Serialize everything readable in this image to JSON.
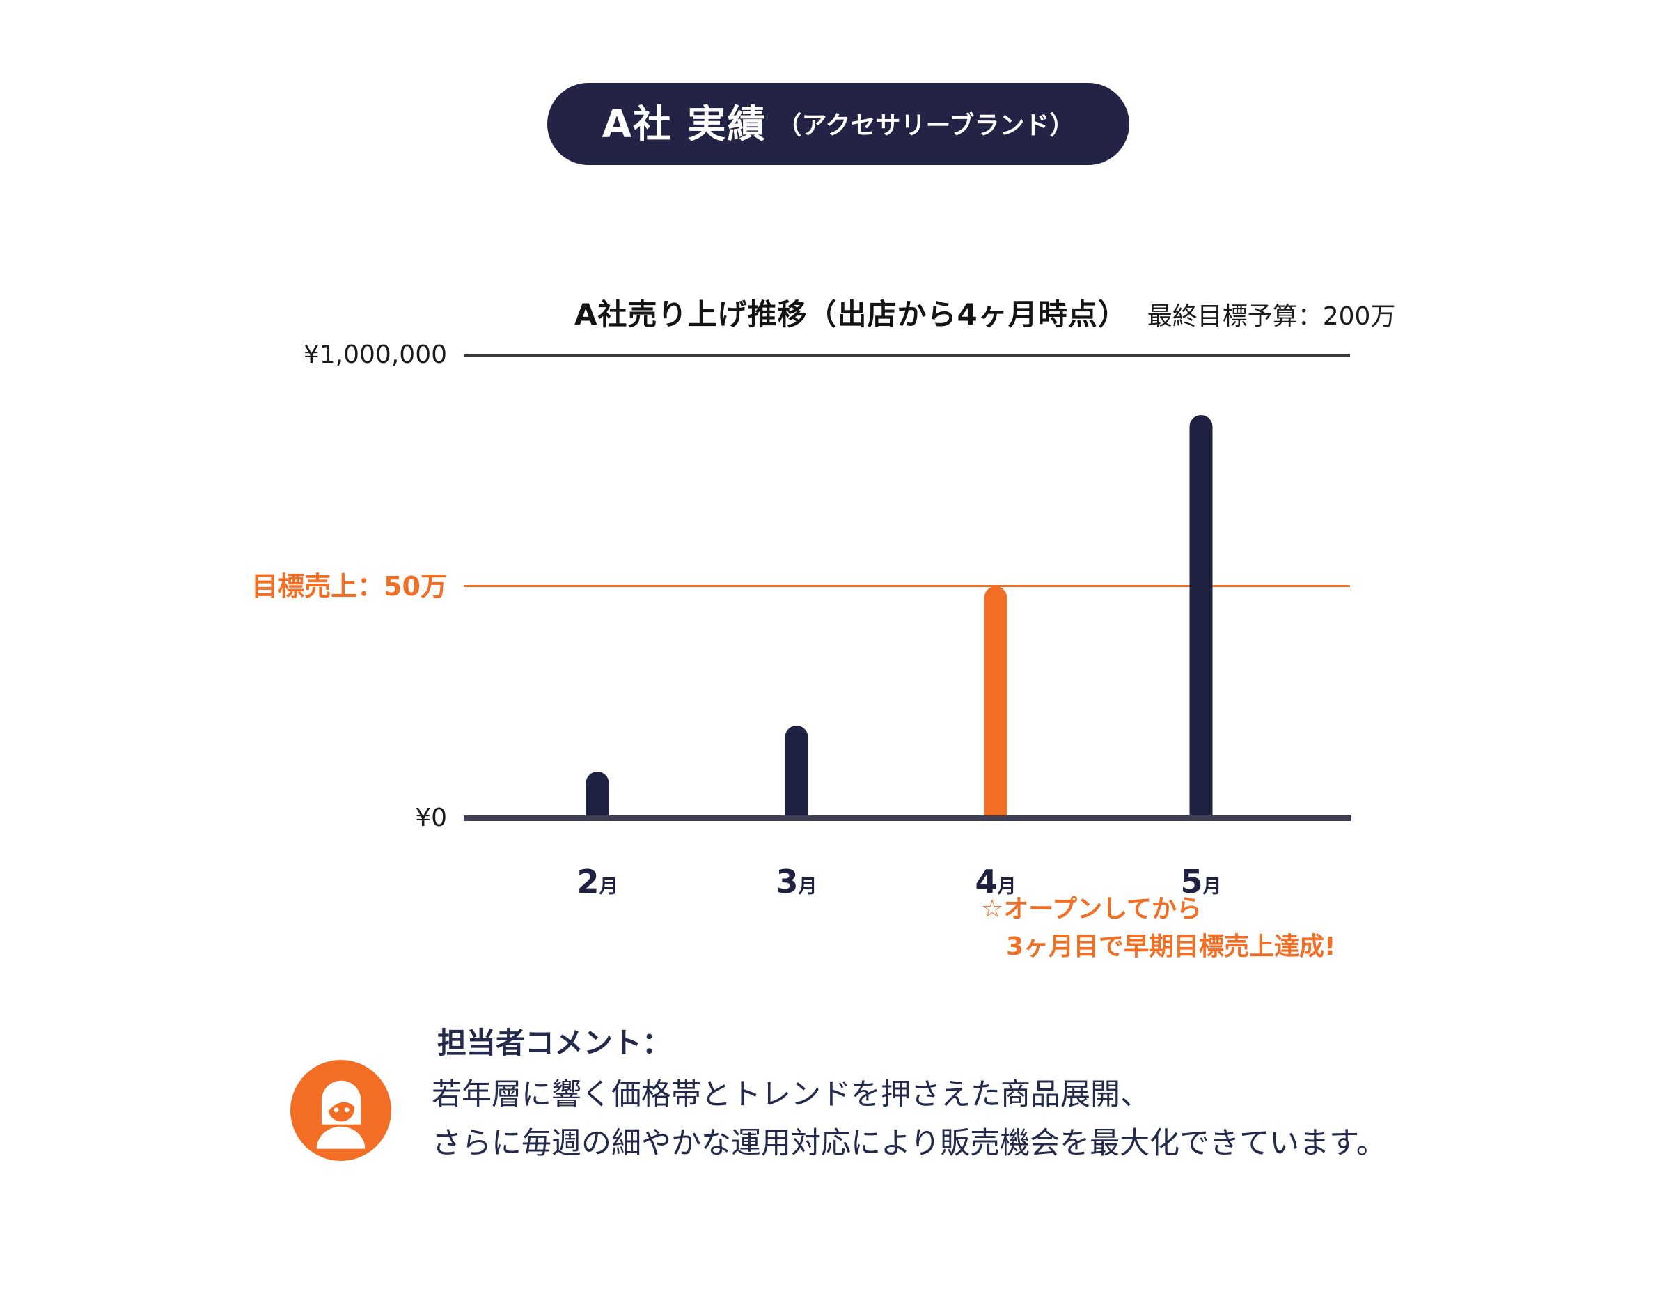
{
  "badge": {
    "title": "A社 実績",
    "subtitle": "（アクセサリーブランド）"
  },
  "chart": {
    "title": "A社売り上げ推移（出店から4ヶ月時点）",
    "subtitle": "最終目標予算：200万",
    "y_axis_top_label": "¥1,000,000",
    "y_axis_zero_label": "¥0",
    "target_label": "目標売上：50万",
    "annotation_line1": "☆オープンしてから",
    "annotation_line2": "3ヶ月目で早期目標売上達成!"
  },
  "chart_data": {
    "type": "bar",
    "categories": [
      "2月",
      "3月",
      "4月",
      "5月"
    ],
    "values": [
      100000,
      200000,
      500000,
      870000
    ],
    "title": "A社売り上げ推移（出店から4ヶ月時点）",
    "xlabel": "",
    "ylabel": "",
    "ylim": [
      0,
      1000000
    ],
    "y_tick_labels": [
      "¥0",
      "¥1,000,000"
    ],
    "grid": "single top gridline at ¥1,000,000",
    "legend": "none",
    "target_line": {
      "value": 500000,
      "label": "目標売上：50万"
    },
    "highlight_category": "4月",
    "annotation": "☆オープンしてから 3ヶ月目で早期目標売上達成!",
    "bar_color_default": "#1E2140",
    "bar_color_highlight": "#F26E24"
  },
  "comment": {
    "heading": "担当者コメント：",
    "line1": "若年層に響く価格帯とトレンドを押さえた商品展開、",
    "line2": "さらに毎週の細やかな運用対応により販売機会を最大化できています。"
  },
  "icons": {
    "avatar": "female-person-icon"
  },
  "colors": {
    "navy": "#1E2140",
    "navy_text": "#242A4C",
    "orange": "#F26E24",
    "badge_bg": "#232345",
    "axis": "#3E3F54",
    "gridline": "#3A3A43",
    "title_black": "#141414"
  }
}
